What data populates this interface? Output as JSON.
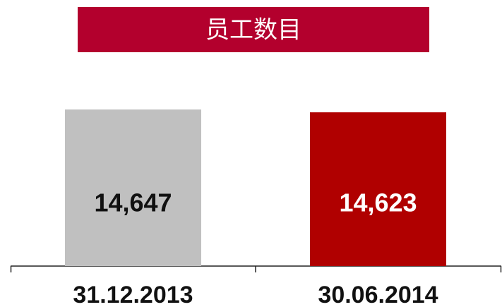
{
  "chart_data": {
    "type": "bar",
    "title": "员工数目",
    "categories": [
      "31.12.2013",
      "30.06.2014"
    ],
    "values": [
      14647,
      14623
    ],
    "value_labels": [
      "14,647",
      "14,623"
    ],
    "colors": [
      "#c0c0c0",
      "#b00000"
    ],
    "title_color": "#b3002d",
    "ylim": [
      13300,
      14800
    ]
  }
}
